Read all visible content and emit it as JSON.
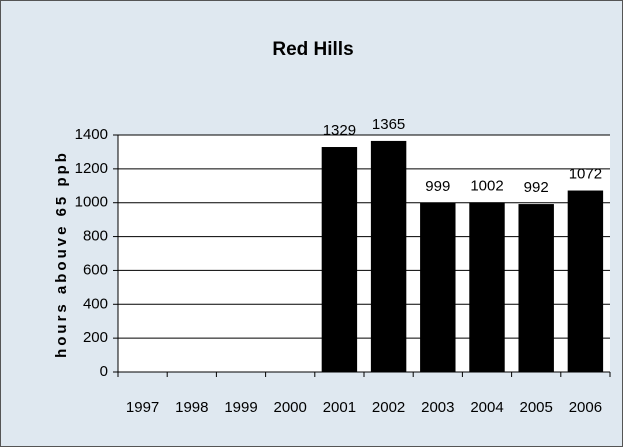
{
  "chart_data": {
    "type": "bar",
    "title": "Red Hills",
    "y_label": "hours abouve 65 ppb",
    "categories": [
      "1997",
      "1998",
      "1999",
      "2000",
      "2001",
      "2002",
      "2003",
      "2004",
      "2005",
      "2006"
    ],
    "values": [
      null,
      null,
      null,
      null,
      1329,
      1365,
      999,
      1002,
      992,
      1072
    ],
    "color": "#000000",
    "ylim": [
      0,
      1400
    ],
    "yticks": [
      0,
      200,
      400,
      600,
      800,
      1000,
      1200,
      1400
    ],
    "grid": true
  }
}
